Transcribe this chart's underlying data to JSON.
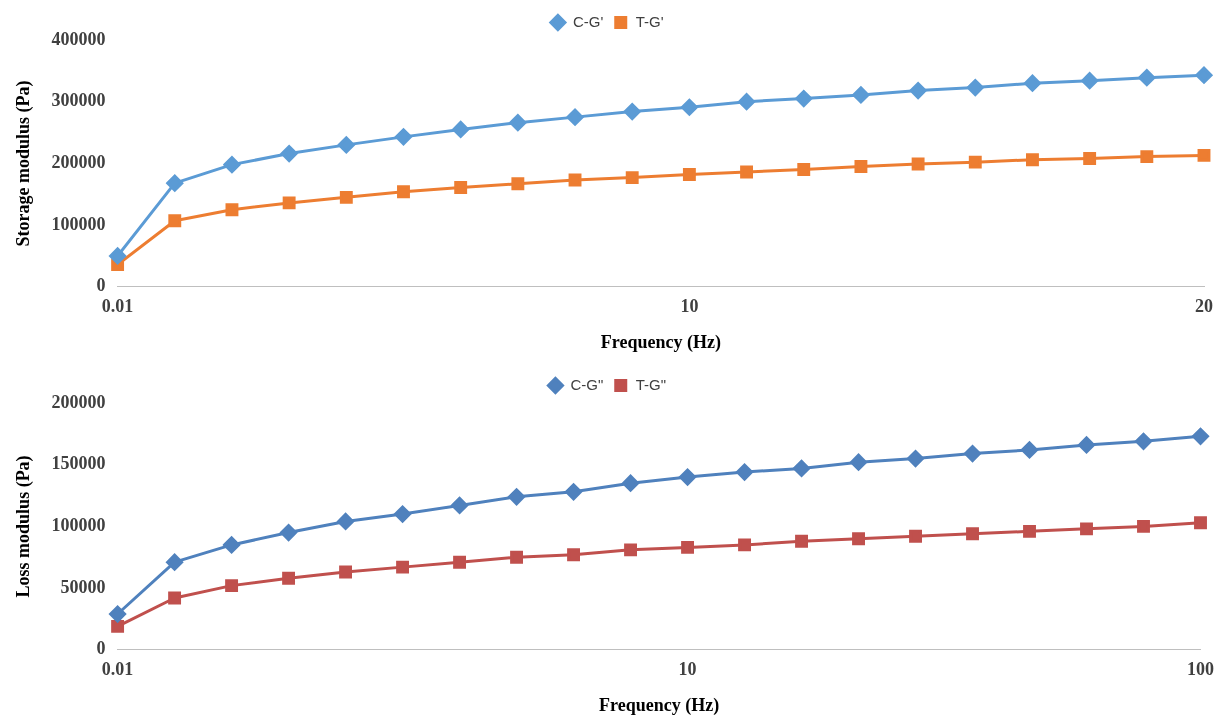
{
  "chart_data": [
    {
      "type": "line",
      "xlabel": "Frequency (Hz)",
      "ylabel": "Storage modulus (Pa)",
      "legend": "top",
      "categories": [
        "0.01",
        null,
        null,
        null,
        null,
        null,
        null,
        null,
        null,
        null,
        "10",
        null,
        null,
        null,
        null,
        null,
        null,
        null,
        null,
        "20"
      ],
      "ylim": [
        0,
        400000
      ],
      "yticks": [
        0,
        100000,
        200000,
        300000,
        400000
      ],
      "series": [
        {
          "name": "C-G'",
          "color": "#5b9bd5",
          "marker": "diamond",
          "values": [
            50000,
            168000,
            198000,
            216000,
            230000,
            243000,
            255000,
            266000,
            275000,
            284000,
            291000,
            300000,
            305000,
            311000,
            318000,
            323000,
            330000,
            334000,
            339000,
            343000
          ]
        },
        {
          "name": "T-G'",
          "color": "#ed7d31",
          "marker": "square",
          "values": [
            36000,
            107000,
            125000,
            136000,
            145000,
            154000,
            161000,
            167000,
            173000,
            177000,
            182000,
            186000,
            190000,
            195000,
            199000,
            202000,
            206000,
            208000,
            211000,
            213000
          ]
        }
      ]
    },
    {
      "type": "line",
      "xlabel": "Frequency (Hz)",
      "ylabel": "Loss modulus (Pa)",
      "legend": "top",
      "categories": [
        "0.01",
        null,
        null,
        null,
        null,
        null,
        null,
        null,
        null,
        null,
        "10",
        null,
        null,
        null,
        null,
        null,
        null,
        null,
        null,
        "100"
      ],
      "ylim": [
        0,
        200000
      ],
      "yticks": [
        0,
        50000,
        100000,
        150000,
        200000
      ],
      "series": [
        {
          "name": "C-G\"",
          "color": "#4f81bd",
          "marker": "diamond",
          "values": [
            29000,
            71000,
            85000,
            95000,
            104000,
            110000,
            117000,
            124000,
            128000,
            135000,
            140000,
            144000,
            147000,
            152000,
            155000,
            159000,
            162000,
            166000,
            169000,
            173000
          ]
        },
        {
          "name": "T-G\"",
          "color": "#c0504d",
          "marker": "square",
          "values": [
            19000,
            42000,
            52000,
            58000,
            63000,
            67000,
            71000,
            75000,
            77000,
            81000,
            83000,
            85000,
            88000,
            90000,
            92000,
            94000,
            96000,
            98000,
            100000,
            103000
          ]
        }
      ]
    }
  ]
}
